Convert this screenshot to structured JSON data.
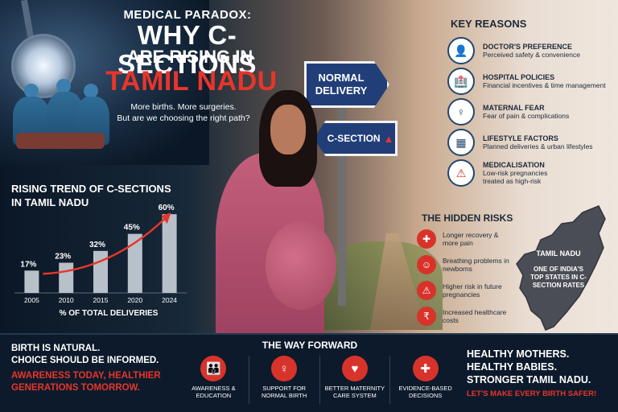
{
  "header": {
    "line1": "MEDICAL PARADOX:",
    "line2": "WHY C-SECTIONS",
    "line3": "ARE RISING IN",
    "line4": "TAMIL NADU",
    "sub1": "More births. More surgeries.",
    "sub2": "But are we choosing the right path?"
  },
  "signs": {
    "normal_line1": "NORMAL",
    "normal_line2": "DELIVERY",
    "csection": "C-SECTION",
    "warn_icon": "warning-triangle-icon"
  },
  "chart": {
    "title_line1": "RISING TREND OF C-SECTIONS",
    "title_line2": "IN TAMIL NADU",
    "caption": "% OF TOTAL DELIVERIES"
  },
  "chart_data": {
    "type": "bar",
    "title": "RISING TREND OF C-SECTIONS IN TAMIL NADU",
    "categories": [
      "2005",
      "2010",
      "2015",
      "2020",
      "2024"
    ],
    "values": [
      17,
      23,
      32,
      45,
      60
    ],
    "value_labels": [
      "17%",
      "23%",
      "32%",
      "45%",
      "60%"
    ],
    "xlabel": "% OF TOTAL DELIVERIES",
    "ylabel": "",
    "ylim": [
      0,
      65
    ],
    "grid": false,
    "trend_arrow": true,
    "colors": {
      "bar": "#b8c0c9",
      "arrow": "#e8352a"
    }
  },
  "key_reasons": {
    "title": "KEY REASONS",
    "items": [
      {
        "icon": "doctor-icon",
        "head": "DOCTOR'S PREFERENCE",
        "desc": "Perceived safety & convenience"
      },
      {
        "icon": "hospital-icon",
        "head": "HOSPITAL POLICIES",
        "desc": "Financial incentives & time management"
      },
      {
        "icon": "pregnant-woman-icon",
        "head": "MATERNAL FEAR",
        "desc": "Fear of pain & complications"
      },
      {
        "icon": "calendar-icon",
        "head": "LIFESTYLE FACTORS",
        "desc": "Planned deliveries & urban lifestyles"
      },
      {
        "icon": "warning-icon",
        "head": "MEDICALISATION",
        "desc": "Low-risk pregnancies treated as high-risk"
      }
    ]
  },
  "hidden_risks": {
    "title": "THE HIDDEN RISKS",
    "items": [
      {
        "icon": "pain-icon",
        "text": "Longer recovery & more pain"
      },
      {
        "icon": "baby-icon",
        "text": "Breathing problems in newborns"
      },
      {
        "icon": "warning-icon",
        "text": "Higher risk in future pregnancies"
      },
      {
        "icon": "rupee-icon",
        "text": "Increased healthcare costs"
      }
    ]
  },
  "map": {
    "label": "TAMIL NADU",
    "sub": "ONE OF INDIA'S TOP STATES IN C-SECTION RATES"
  },
  "bottom": {
    "left1": "BIRTH IS NATURAL.",
    "left2": "CHOICE SHOULD BE INFORMED.",
    "left3": "AWARENESS TODAY, HEALTHIER",
    "left4": "GENERATIONS TOMORROW.",
    "way_title": "THE WAY FORWARD",
    "way_items": [
      {
        "icon": "people-icon",
        "label1": "AWARENESS &",
        "label2": "EDUCATION"
      },
      {
        "icon": "mother-support-icon",
        "label1": "SUPPORT FOR",
        "label2": "NORMAL BIRTH"
      },
      {
        "icon": "heart-hands-icon",
        "label1": "BETTER MATERNITY",
        "label2": "CARE SYSTEM"
      },
      {
        "icon": "medical-kit-icon",
        "label1": "EVIDENCE-BASED",
        "label2": "DECISIONS"
      }
    ],
    "right1": "HEALTHY MOTHERS.",
    "right2": "HEALTHY BABIES.",
    "right3": "STRONGER TAMIL NADU.",
    "right4": "LET'S MAKE EVERY BIRTH SAFER!"
  },
  "colors": {
    "accent_red": "#e8352a",
    "navy": "#0d1a2b",
    "sign_blue": "#213e78"
  }
}
